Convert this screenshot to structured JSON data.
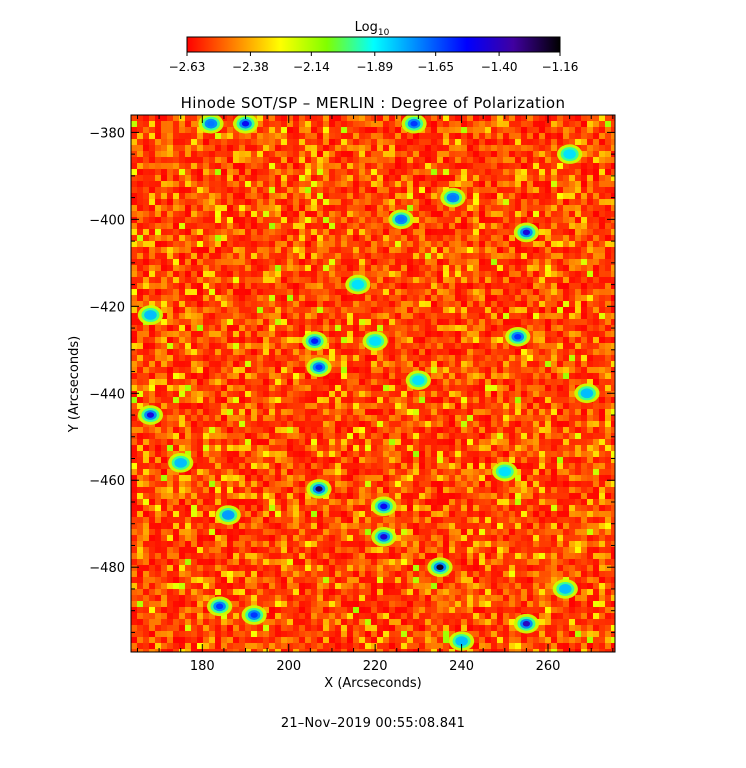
{
  "chart_data": {
    "type": "heatmap",
    "title": "Hinode SOT/SP – MERLIN : Degree of Polarization",
    "xlabel": "X (Arcseconds)",
    "ylabel": "Y (Arcseconds)",
    "xlim": [
      163.5,
      275.5
    ],
    "ylim": [
      -499.5,
      -376.0
    ],
    "x_ticks": [
      180,
      200,
      220,
      240,
      260
    ],
    "x_tick_labels": [
      "180",
      "200",
      "220",
      "240",
      "260"
    ],
    "y_ticks": [
      -380,
      -400,
      -420,
      -440,
      -460,
      -480
    ],
    "y_tick_labels": [
      "−380",
      "−400",
      "−420",
      "−440",
      "−460",
      "−480"
    ],
    "colorbar": {
      "label_base": "Log",
      "label_sub": "10",
      "range": [
        -2.63,
        -1.16
      ],
      "ticks": [
        -2.63,
        -2.38,
        -2.14,
        -1.89,
        -1.65,
        -1.4,
        -1.16
      ],
      "tick_labels": [
        "−2.63",
        "−2.38",
        "−2.14",
        "−1.89",
        "−1.65",
        "−1.40",
        "−1.16"
      ],
      "colormap": [
        "#ff0000",
        "#ff8000",
        "#ffff00",
        "#80ff00",
        "#00ffff",
        "#0080ff",
        "#0000ff",
        "#4000a0",
        "#000000"
      ]
    },
    "high_polarization_patches": [
      {
        "x": 207,
        "y": -462,
        "v": -1.25
      },
      {
        "x": 235,
        "y": -480,
        "v": -1.2
      },
      {
        "x": 222,
        "y": -473,
        "v": -1.45
      },
      {
        "x": 222,
        "y": -466,
        "v": -1.5
      },
      {
        "x": 255,
        "y": -403,
        "v": -1.45
      },
      {
        "x": 255,
        "y": -493,
        "v": -1.4
      },
      {
        "x": 168,
        "y": -445,
        "v": -1.45
      },
      {
        "x": 206,
        "y": -428,
        "v": -1.55
      },
      {
        "x": 207,
        "y": -434,
        "v": -1.6
      },
      {
        "x": 253,
        "y": -427,
        "v": -1.6
      },
      {
        "x": 182,
        "y": -378,
        "v": -1.7
      },
      {
        "x": 190,
        "y": -378,
        "v": -1.5
      },
      {
        "x": 229,
        "y": -378,
        "v": -1.6
      },
      {
        "x": 238,
        "y": -395,
        "v": -1.7
      },
      {
        "x": 192,
        "y": -491,
        "v": -1.6
      },
      {
        "x": 184,
        "y": -489,
        "v": -1.6
      },
      {
        "x": 175,
        "y": -456,
        "v": -1.8
      },
      {
        "x": 186,
        "y": -468,
        "v": -1.75
      },
      {
        "x": 250,
        "y": -458,
        "v": -1.85
      },
      {
        "x": 264,
        "y": -485,
        "v": -1.8
      },
      {
        "x": 269,
        "y": -440,
        "v": -1.8
      },
      {
        "x": 220,
        "y": -428,
        "v": -1.85
      },
      {
        "x": 168,
        "y": -422,
        "v": -1.8
      },
      {
        "x": 230,
        "y": -437,
        "v": -1.85
      },
      {
        "x": 216,
        "y": -415,
        "v": -1.85
      },
      {
        "x": 226,
        "y": -400,
        "v": -1.7
      },
      {
        "x": 265,
        "y": -385,
        "v": -1.85
      },
      {
        "x": 240,
        "y": -497,
        "v": -1.8
      }
    ],
    "grid": false
  },
  "timestamp": "21–Nov–2019 00:55:08.841"
}
